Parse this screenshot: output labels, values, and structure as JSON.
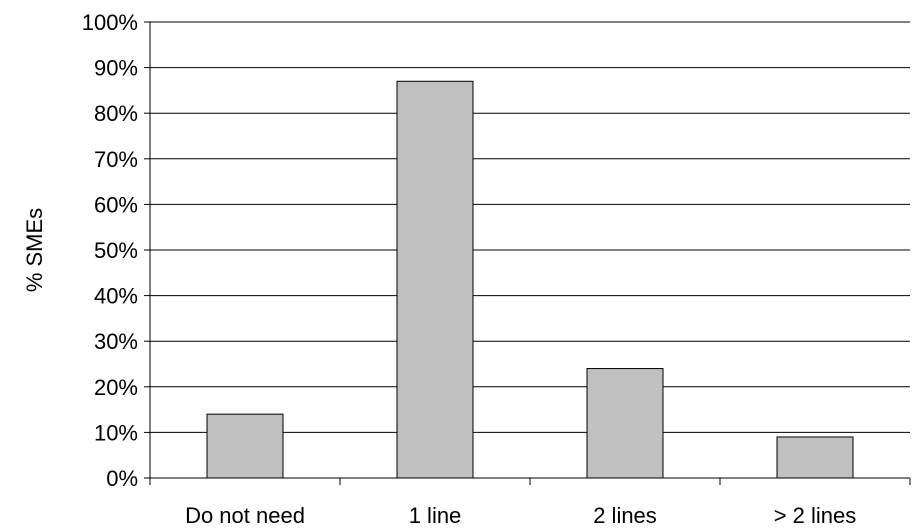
{
  "chart_data": {
    "type": "bar",
    "title": "",
    "xlabel": "",
    "ylabel": "% SMEs",
    "categories": [
      "Do not need",
      "1 line",
      "2 lines",
      "> 2 lines"
    ],
    "values": [
      14,
      87,
      24,
      9
    ],
    "ylim": [
      0,
      100
    ],
    "yticks": [
      0,
      10,
      20,
      30,
      40,
      50,
      60,
      70,
      80,
      90,
      100
    ],
    "ytick_labels": [
      "0%",
      "10%",
      "20%",
      "30%",
      "40%",
      "50%",
      "60%",
      "70%",
      "80%",
      "90%",
      "100%"
    ],
    "grid": true,
    "legend": "none",
    "colors": {
      "bar_fill": "#c0c0c0",
      "bar_stroke": "#000000",
      "gridline": "#000000",
      "axis": "#000000"
    }
  }
}
